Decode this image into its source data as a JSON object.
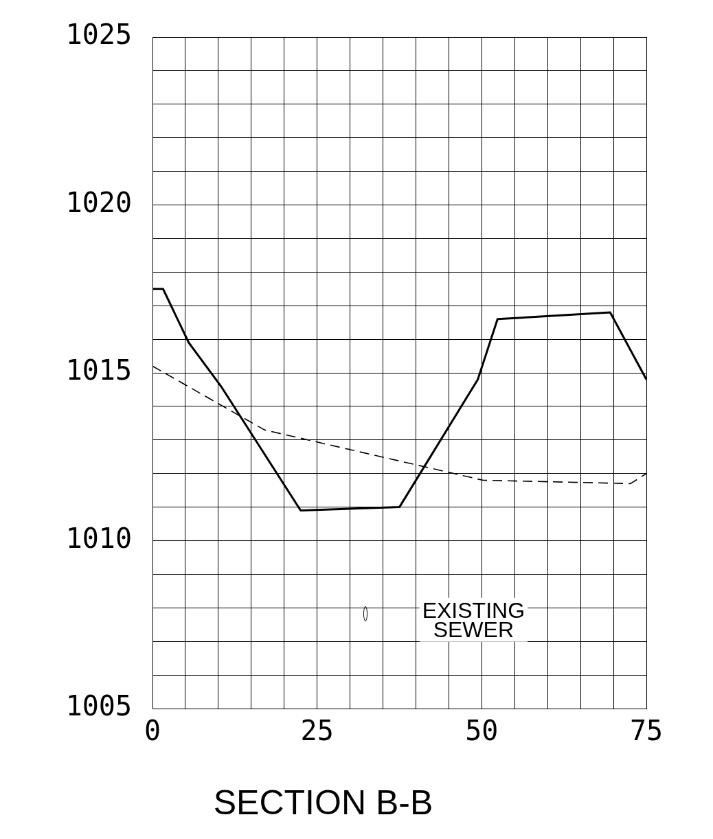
{
  "chart_data": {
    "type": "line",
    "title": "SECTION B-B",
    "xlim": [
      0,
      75
    ],
    "ylim": [
      1005,
      1025
    ],
    "xticks": [
      0,
      {
        "value": 5,
        "label": null
      },
      {
        "value": 10,
        "label": null
      },
      {
        "value": 15,
        "label": null
      },
      {
        "value": 20,
        "label": null
      },
      25,
      {
        "value": 30,
        "label": null
      },
      {
        "value": 35,
        "label": null
      },
      {
        "value": 40,
        "label": null
      },
      {
        "value": 45,
        "label": null
      },
      50,
      {
        "value": 55,
        "label": null
      },
      {
        "value": 60,
        "label": null
      },
      {
        "value": 65,
        "label": null
      },
      {
        "value": 70,
        "label": null
      },
      75
    ],
    "yticks": [
      1005,
      {
        "value": 1006,
        "label": null
      },
      {
        "value": 1007,
        "label": null
      },
      {
        "value": 1008,
        "label": null
      },
      {
        "value": 1009,
        "label": null
      },
      1010,
      {
        "value": 1011,
        "label": null
      },
      {
        "value": 1012,
        "label": null
      },
      {
        "value": 1013,
        "label": null
      },
      {
        "value": 1014,
        "label": null
      },
      1015,
      {
        "value": 1016,
        "label": null
      },
      {
        "value": 1017,
        "label": null
      },
      {
        "value": 1018,
        "label": null
      },
      {
        "value": 1019,
        "label": null
      },
      1020,
      {
        "value": 1021,
        "label": null
      },
      {
        "value": 1022,
        "label": null
      },
      {
        "value": 1023,
        "label": null
      },
      {
        "value": 1024,
        "label": null
      },
      1025
    ],
    "grid": true,
    "legend": false,
    "marker": "none",
    "series": [
      {
        "color": "#000000",
        "line_style": "solid",
        "x": [
          0,
          1.6,
          5.5,
          10.4,
          22.5,
          37.5,
          49.4,
          52.4,
          69.5,
          75
        ],
        "values": [
          1017.5,
          1017.5,
          1015.9,
          1014.6,
          1010.9,
          1011,
          1014.8,
          1016.6,
          1016.8,
          1014.8
        ]
      },
      {
        "color": "#000000",
        "line_style": "dashed",
        "x": [
          0,
          17,
          50.2,
          72.6,
          75
        ],
        "values": [
          1015.2,
          1013.3,
          1011.8,
          1011.7,
          1012
        ]
      }
    ],
    "annotations": [
      "EXISTING\nSEWER"
    ]
  }
}
